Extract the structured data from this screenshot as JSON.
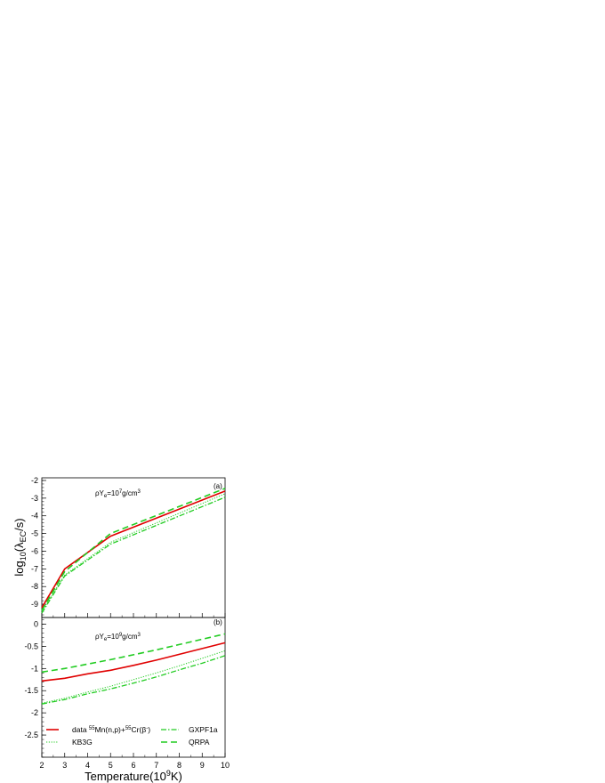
{
  "chart_data": [
    {
      "type": "line",
      "panel_label": "(a)",
      "annotation": {
        "prefix": "ρY",
        "sub": "e",
        "mid": "=10",
        "sup": "7",
        "suffix": "g/cm",
        "sup2": "3"
      },
      "xlim": [
        2,
        10
      ],
      "ylim": [
        -9.75,
        -1.85
      ],
      "yticks": [
        -9,
        -8,
        -7,
        -6,
        -5,
        -4,
        -3,
        -2
      ],
      "ytick_labels": [
        "-9",
        "-8",
        "-7",
        "-6",
        "-5",
        "-4",
        "-3",
        "-2"
      ],
      "series": [
        {
          "key": "data",
          "color": "#e00000",
          "dash": "",
          "width": 1.6,
          "x": [
            2,
            3,
            5,
            10
          ],
          "y": [
            -9.2,
            -7.0,
            -5.15,
            -2.6
          ]
        },
        {
          "key": "kb3g",
          "color": "#22cc22",
          "dash": "1.2,1.6",
          "width": 1,
          "x": [
            2,
            3,
            5,
            10
          ],
          "y": [
            -9.4,
            -7.35,
            -5.5,
            -2.75
          ]
        },
        {
          "key": "gxpf1a",
          "color": "#22cc22",
          "dash": "6,2,1.5,2",
          "width": 1.3,
          "x": [
            2,
            3,
            5,
            10
          ],
          "y": [
            -9.5,
            -7.4,
            -5.6,
            -2.95
          ]
        },
        {
          "key": "qrpa",
          "color": "#22cc22",
          "dash": "7,4",
          "width": 1.6,
          "x": [
            2,
            3,
            5,
            10
          ],
          "y": [
            -9.35,
            -7.15,
            -5.0,
            -2.45
          ]
        }
      ]
    },
    {
      "type": "line",
      "panel_label": "(b)",
      "annotation": {
        "prefix": "ρY",
        "sub": "e",
        "mid": "=10",
        "sup": "9",
        "suffix": "g/cm",
        "sup2": "3"
      },
      "xlabel": {
        "prefix": "Temperature(10",
        "sup": "9",
        "suffix": "K)"
      },
      "xlim": [
        2,
        10
      ],
      "ylim": [
        -3.0,
        0.15
      ],
      "xticks": [
        2,
        3,
        4,
        5,
        6,
        7,
        8,
        9,
        10
      ],
      "xtick_labels": [
        "2",
        "3",
        "4",
        "5",
        "6",
        "7",
        "8",
        "9",
        "10"
      ],
      "yticks": [
        -2.5,
        -2,
        -1.5,
        -1,
        -0.5,
        0
      ],
      "ytick_labels": [
        "-2.5",
        "-2",
        "-1.5",
        "-1",
        "-0.5",
        "0"
      ],
      "series": [
        {
          "key": "data",
          "color": "#e00000",
          "dash": "",
          "width": 1.6,
          "x": [
            2,
            3,
            4,
            5,
            6,
            7,
            8,
            9,
            10
          ],
          "y": [
            -1.28,
            -1.22,
            -1.12,
            -1.04,
            -0.93,
            -0.81,
            -0.68,
            -0.55,
            -0.42
          ]
        },
        {
          "key": "kb3g",
          "color": "#22cc22",
          "dash": "1.2,1.6",
          "width": 1,
          "x": [
            2,
            3,
            4,
            5,
            6,
            7,
            8,
            9,
            10
          ],
          "y": [
            -1.78,
            -1.67,
            -1.53,
            -1.4,
            -1.25,
            -1.1,
            -0.94,
            -0.77,
            -0.6
          ]
        },
        {
          "key": "gxpf1a",
          "color": "#22cc22",
          "dash": "6,2,1.5,2",
          "width": 1.3,
          "x": [
            2,
            3,
            4,
            5,
            6,
            7,
            8,
            9,
            10
          ],
          "y": [
            -1.8,
            -1.7,
            -1.57,
            -1.46,
            -1.33,
            -1.19,
            -1.03,
            -0.88,
            -0.71
          ]
        },
        {
          "key": "qrpa",
          "color": "#22cc22",
          "dash": "7,4",
          "width": 1.6,
          "x": [
            2,
            3,
            4,
            5,
            6,
            7,
            8,
            9,
            10
          ],
          "y": [
            -1.08,
            -1.0,
            -0.9,
            -0.8,
            -0.69,
            -0.58,
            -0.46,
            -0.34,
            -0.22
          ]
        }
      ]
    }
  ],
  "shared_ylabel": {
    "prefix": "log",
    "sub1": "10",
    "mid": "(λ",
    "sub2": "EC",
    "suffix": "/s)"
  },
  "legend": [
    {
      "key": "data",
      "parts": [
        "data ",
        "55",
        "Mn(n,p)+",
        "55",
        "Cr(β",
        "-",
        ")"
      ]
    },
    {
      "key": "kb3g",
      "parts": [
        "KB3G"
      ]
    },
    {
      "key": "gxpf1a",
      "parts": [
        "GXPF1a"
      ]
    },
    {
      "key": "qrpa",
      "parts": [
        "QRPA"
      ]
    }
  ]
}
